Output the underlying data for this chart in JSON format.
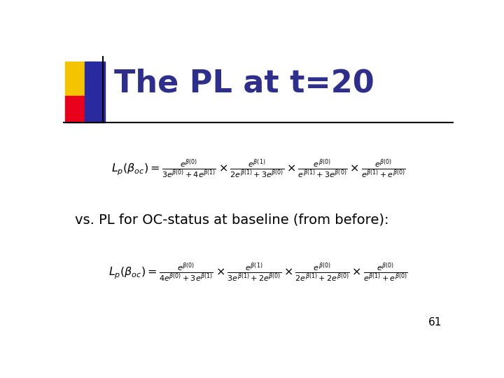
{
  "title": "The PL at t=20",
  "title_color": "#2E2E8B",
  "title_fontsize": 32,
  "bg_color": "#FFFFFF",
  "slide_number": "61",
  "formula1": "L_p(\\beta_{oc}) = \\frac{e^{\\beta(0)}}{3e^{\\beta(0)} + 4e^{\\beta(1)}} \\times \\frac{e^{\\beta(1)}}{2e^{\\beta(1)} + 3e^{\\beta(0)}} \\times \\frac{e^{\\beta(0)}}{e^{\\beta(1)} + 3e^{\\beta(0)}} \\times \\frac{e^{\\beta(0)}}{e^{\\beta(1)} + e^{\\beta(0)}}",
  "formula2": "L_p(\\beta_{oc}) = \\frac{e^{\\beta(0)}}{4e^{\\beta(0)} + 3e^{\\beta(1)}} \\times \\frac{e^{\\beta(1)}}{3e^{\\beta(1)} + 2e^{\\beta(0)}} \\times \\frac{e^{\\beta(0)}}{2e^{\\beta(1)} + 2e^{\\beta(0)}} \\times \\frac{e^{\\beta(0)}}{e^{\\beta(1)} + e^{\\beta(0)}}",
  "vs_text": "vs. PL for OC-status at baseline (from before):",
  "yellow_color": "#F5C400",
  "red_color": "#E8001C",
  "blue_color": "#2A2AA0"
}
